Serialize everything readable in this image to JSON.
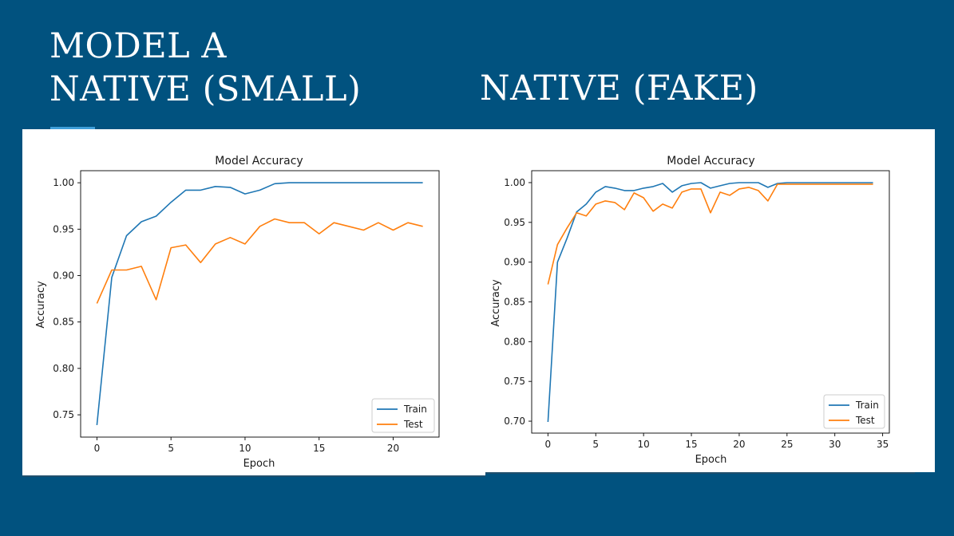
{
  "slide": {
    "left_title_lines": [
      "MODEL A",
      "NATIVE (SMALL)"
    ],
    "right_title": "NATIVE (FAKE)",
    "colors": {
      "background": "#01527f",
      "accent": "#3f9fd9",
      "train": "#1f77b4",
      "test": "#ff7f0e"
    }
  },
  "chart_data": [
    {
      "type": "line",
      "title": "Model Accuracy",
      "xlabel": "Epoch",
      "ylabel": "Accuracy",
      "xlim": [
        -1.1,
        23.1
      ],
      "ylim": [
        0.726,
        1.013
      ],
      "xticks": [
        0,
        5,
        10,
        15,
        20
      ],
      "yticks": [
        0.75,
        0.8,
        0.85,
        0.9,
        0.95,
        1.0
      ],
      "ytick_labels": [
        "0.75",
        "0.80",
        "0.85",
        "0.90",
        "0.95",
        "1.00"
      ],
      "legend_position": "lower-right",
      "x": [
        0,
        1,
        2,
        3,
        4,
        5,
        6,
        7,
        8,
        9,
        10,
        11,
        12,
        13,
        14,
        15,
        16,
        17,
        18,
        19,
        20,
        21,
        22
      ],
      "series": [
        {
          "name": "Train",
          "color": "#1f77b4",
          "values": [
            0.739,
            0.898,
            0.943,
            0.958,
            0.964,
            0.979,
            0.992,
            0.992,
            0.996,
            0.995,
            0.988,
            0.992,
            0.999,
            1.0,
            1.0,
            1.0,
            1.0,
            1.0,
            1.0,
            1.0,
            1.0,
            1.0,
            1.0
          ]
        },
        {
          "name": "Test",
          "color": "#ff7f0e",
          "values": [
            0.87,
            0.906,
            0.906,
            0.91,
            0.874,
            0.93,
            0.933,
            0.914,
            0.934,
            0.941,
            0.934,
            0.953,
            0.961,
            0.957,
            0.957,
            0.945,
            0.957,
            0.953,
            0.949,
            0.957,
            0.949,
            0.957,
            0.953
          ]
        }
      ]
    },
    {
      "type": "line",
      "title": "Model Accuracy",
      "xlabel": "Epoch",
      "ylabel": "Accuracy",
      "xlim": [
        -1.7,
        35.7
      ],
      "ylim": [
        0.685,
        1.015
      ],
      "xticks": [
        0,
        5,
        10,
        15,
        20,
        25,
        30,
        35
      ],
      "yticks": [
        0.7,
        0.75,
        0.8,
        0.85,
        0.9,
        0.95,
        1.0
      ],
      "ytick_labels": [
        "0.70",
        "0.75",
        "0.80",
        "0.85",
        "0.90",
        "0.95",
        "1.00"
      ],
      "legend_position": "lower-right",
      "x": [
        0,
        1,
        2,
        3,
        4,
        5,
        6,
        7,
        8,
        9,
        10,
        11,
        12,
        13,
        14,
        15,
        16,
        17,
        18,
        19,
        20,
        21,
        22,
        23,
        24,
        25,
        26,
        27,
        28,
        29,
        30,
        31,
        32,
        33,
        34
      ],
      "series": [
        {
          "name": "Train",
          "color": "#1f77b4",
          "values": [
            0.699,
            0.9,
            0.93,
            0.963,
            0.973,
            0.988,
            0.995,
            0.993,
            0.99,
            0.99,
            0.993,
            0.995,
            0.999,
            0.988,
            0.996,
            0.999,
            1.0,
            0.993,
            0.996,
            0.999,
            1.0,
            1.0,
            1.0,
            0.994,
            0.999,
            1.0,
            1.0,
            1.0,
            1.0,
            1.0,
            1.0,
            1.0,
            1.0,
            1.0,
            1.0
          ]
        },
        {
          "name": "Test",
          "color": "#ff7f0e",
          "values": [
            0.872,
            0.922,
            0.943,
            0.962,
            0.958,
            0.973,
            0.977,
            0.975,
            0.966,
            0.987,
            0.981,
            0.964,
            0.973,
            0.968,
            0.988,
            0.992,
            0.992,
            0.962,
            0.988,
            0.984,
            0.992,
            0.994,
            0.99,
            0.977,
            0.998,
            0.998,
            0.998,
            0.998,
            0.998,
            0.998,
            0.998,
            0.998,
            0.998,
            0.998,
            0.998
          ]
        }
      ]
    }
  ]
}
